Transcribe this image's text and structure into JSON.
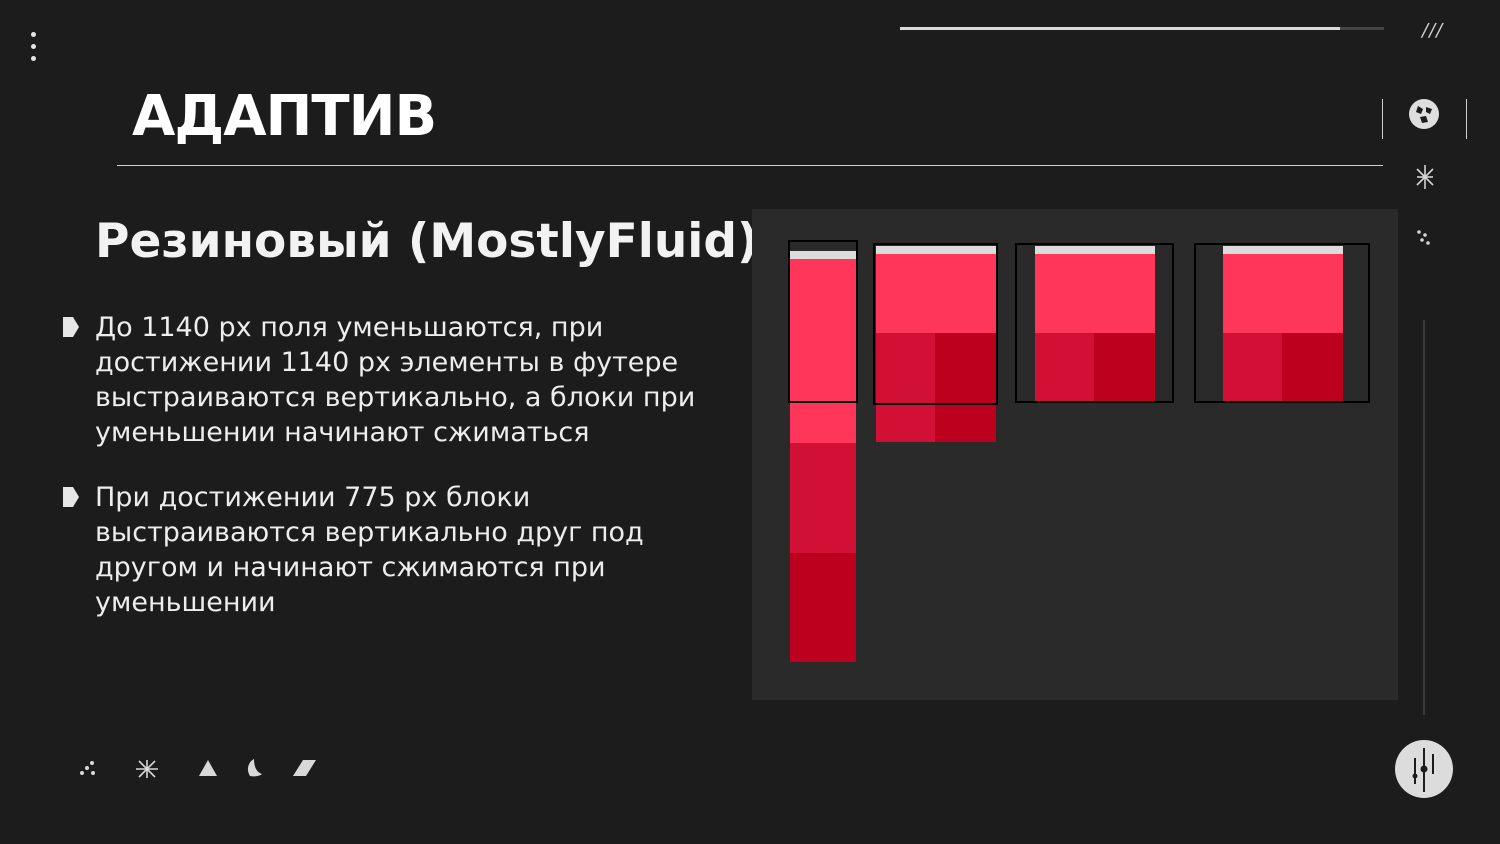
{
  "slide": {
    "title": "АДАПТИВ",
    "subtitle": "Резиновый (MostlyFluid)",
    "bullets": [
      "До 1140 px поля уменьшаются, при достижении 1140 px элементы в футере выстраиваются вертикально, а блоки при уменьшении начинают сжиматься",
      "При достижении 775 px блоки выстраиваются вертикально друг под другом и  начинают сжимаются при уменьшении"
    ],
    "progress": 0.91
  },
  "icons": {
    "menu": "kebab-menu-icon",
    "slashes": "///",
    "side": [
      "globe-icon",
      "asterisk-icon",
      "dots-icon"
    ],
    "bottom": [
      "dots-icon",
      "asterisk-icon",
      "triangle-icon",
      "leaf-icon",
      "parallelogram-icon"
    ],
    "dial": "dial-icon"
  },
  "colors": {
    "background": "#1c1c1c",
    "panel": "#2a2a2a",
    "pink": "#ff3659",
    "red_mid": "#d21035",
    "red_dark": "#be001f",
    "header_bar": "#dcdcdc"
  }
}
